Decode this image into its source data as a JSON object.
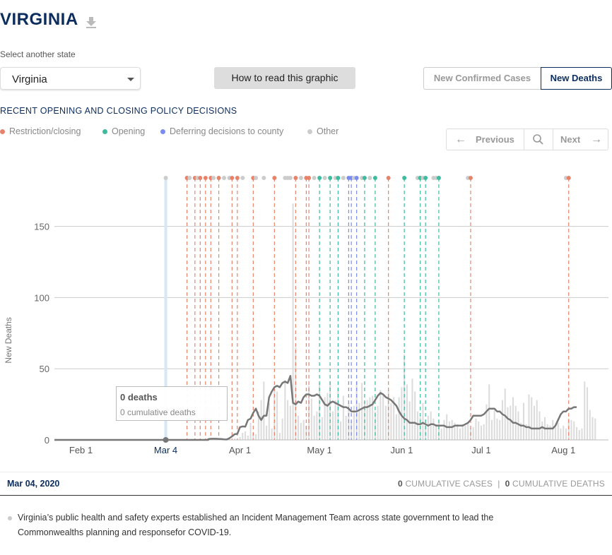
{
  "header": {
    "title": "VIRGINIA",
    "download_icon": "download-icon"
  },
  "state_select": {
    "label": "Select another state",
    "value": "Virginia"
  },
  "howto_button": "How to read this graphic",
  "toggle": {
    "cases": "New Confirmed Cases",
    "deaths": "New Deaths",
    "active": "deaths"
  },
  "policy": {
    "title": "RECENT OPENING AND CLOSING POLICY DECISIONS",
    "legend": [
      {
        "label": "Restriction/closing",
        "color": "#e8836b"
      },
      {
        "label": "Opening",
        "color": "#3dbb9c"
      },
      {
        "label": "Deferring decisions to county",
        "color": "#7b8cf0"
      },
      {
        "label": "Other",
        "color": "#cccccc"
      }
    ]
  },
  "pager": {
    "previous": "Previous",
    "next": "Next"
  },
  "tooltip": {
    "deaths": "0 deaths",
    "cumulative": "0 cumulative deaths"
  },
  "footer": {
    "date": "Mar 04, 2020",
    "cases_value": "0",
    "cases_label": "CUMULATIVE CASES",
    "separator": "|",
    "deaths_value": "0",
    "deaths_label": "CUMULATIVE DEATHS",
    "note": "Virginia’s public health and safety experts established an Incident Management Team across state government to lead the Commonwealths planning and responsefor COVID-19."
  },
  "chart_data": {
    "type": "bar",
    "ylabel": "New Deaths",
    "ylim": [
      0,
      190
    ],
    "y_ticks": [
      0,
      50,
      100,
      150
    ],
    "x_range": [
      "2020-01-22",
      "2020-08-18"
    ],
    "x_ticks": [
      {
        "date": "2020-02-01",
        "label": "Feb 1"
      },
      {
        "date": "2020-03-01",
        "label": "M"
      },
      {
        "date": "2020-04-01",
        "label": "Apr 1"
      },
      {
        "date": "2020-05-01",
        "label": "May 1"
      },
      {
        "date": "2020-06-01",
        "label": "Jun 1"
      },
      {
        "date": "2020-07-01",
        "label": "Jul 1"
      },
      {
        "date": "2020-08-01",
        "label": "Aug 1"
      }
    ],
    "selected": {
      "date": "2020-03-04",
      "label": "Mar 4"
    },
    "bars_start": "2020-03-14",
    "bars": [
      0,
      1,
      0,
      0,
      0,
      0,
      1,
      0,
      0,
      1,
      1,
      0,
      0,
      1,
      2,
      0,
      1,
      0,
      2,
      5,
      6,
      3,
      12,
      5,
      4,
      20,
      28,
      41,
      10,
      26,
      8,
      36,
      34,
      5,
      15,
      42,
      28,
      24,
      166,
      65,
      17,
      12,
      14,
      10,
      38,
      29,
      17,
      20,
      40,
      16,
      30,
      33,
      41,
      20,
      28,
      36,
      13,
      31,
      17,
      26,
      13,
      24,
      41,
      26,
      40,
      27,
      28,
      30,
      31,
      20,
      24,
      35,
      31,
      24,
      35,
      26,
      30,
      18,
      30,
      37,
      60,
      39,
      27,
      43,
      34,
      20,
      16,
      26,
      14,
      17,
      20,
      15,
      11,
      13,
      8,
      14,
      18,
      13,
      14,
      12,
      11,
      8,
      11,
      10,
      12,
      8,
      9,
      15,
      13,
      10,
      11,
      25,
      39,
      14,
      21,
      15,
      14,
      28,
      36,
      23,
      24,
      30,
      24,
      20,
      12,
      26,
      11,
      32,
      30,
      24,
      28,
      20,
      13,
      16,
      11,
      10,
      14,
      9,
      12,
      8,
      10,
      8,
      15,
      14,
      13,
      9,
      7,
      8,
      41,
      37,
      21,
      16,
      15
    ],
    "avg_start": "2020-03-20",
    "avg": [
      0.5,
      0.8,
      0.8,
      0.8,
      0.7,
      0.6,
      0.4,
      0.3,
      1.2,
      2.5,
      4,
      4.2,
      9,
      9.5,
      9.3,
      14,
      15,
      19,
      22,
      17,
      14,
      17,
      17,
      30,
      34,
      37,
      38,
      37,
      40,
      41,
      40,
      45,
      26,
      25,
      27,
      26,
      30,
      32,
      32,
      31,
      31,
      32,
      31,
      28,
      25,
      24,
      26,
      27,
      26,
      25,
      24,
      23,
      23,
      22,
      20,
      20,
      20,
      21,
      22,
      23,
      23,
      24,
      25,
      28,
      31,
      33,
      32,
      30,
      29,
      28,
      26,
      24,
      20,
      17,
      15,
      14,
      12,
      12,
      12,
      11,
      11,
      12,
      11,
      10,
      11,
      11,
      10,
      10,
      10,
      10,
      9,
      9,
      9,
      10,
      10,
      10,
      10,
      11,
      12,
      14,
      17,
      17,
      17,
      17,
      18,
      20,
      22,
      22,
      22,
      20,
      20,
      18,
      17,
      15,
      14,
      12,
      12,
      11,
      10,
      10,
      9,
      9,
      8,
      8,
      8,
      8,
      9,
      8,
      8,
      8,
      8,
      10,
      14,
      18,
      20,
      20,
      22,
      22,
      23,
      23
    ]
  },
  "policy_events": [
    {
      "date": "2020-03-12",
      "type": "restriction"
    },
    {
      "date": "2020-03-13",
      "type": "other"
    },
    {
      "date": "2020-03-15",
      "type": "restriction"
    },
    {
      "date": "2020-03-16",
      "type": "other"
    },
    {
      "date": "2020-03-17",
      "type": "restriction"
    },
    {
      "date": "2020-03-19",
      "type": "restriction"
    },
    {
      "date": "2020-03-21",
      "type": "restriction"
    },
    {
      "date": "2020-03-22",
      "type": "other"
    },
    {
      "date": "2020-03-24",
      "type": "restriction"
    },
    {
      "date": "2020-03-26",
      "type": "other"
    },
    {
      "date": "2020-03-28",
      "type": "other"
    },
    {
      "date": "2020-03-29",
      "type": "restriction"
    },
    {
      "date": "2020-03-31",
      "type": "restriction"
    },
    {
      "date": "2020-04-02",
      "type": "other"
    },
    {
      "date": "2020-04-06",
      "type": "restriction"
    },
    {
      "date": "2020-04-07",
      "type": "other"
    },
    {
      "date": "2020-04-10",
      "type": "other"
    },
    {
      "date": "2020-04-14",
      "type": "restriction"
    },
    {
      "date": "2020-04-18",
      "type": "other"
    },
    {
      "date": "2020-04-19",
      "type": "other"
    },
    {
      "date": "2020-04-20",
      "type": "other"
    },
    {
      "date": "2020-04-22",
      "type": "restriction"
    },
    {
      "date": "2020-04-24",
      "type": "other"
    },
    {
      "date": "2020-04-26",
      "type": "restriction"
    },
    {
      "date": "2020-04-27",
      "type": "restriction"
    },
    {
      "date": "2020-04-29",
      "type": "other"
    },
    {
      "date": "2020-05-01",
      "type": "opening"
    },
    {
      "date": "2020-05-03",
      "type": "other"
    },
    {
      "date": "2020-05-05",
      "type": "opening"
    },
    {
      "date": "2020-05-07",
      "type": "other"
    },
    {
      "date": "2020-05-08",
      "type": "opening"
    },
    {
      "date": "2020-05-10",
      "type": "other"
    },
    {
      "date": "2020-05-12",
      "type": "county"
    },
    {
      "date": "2020-05-13",
      "type": "county"
    },
    {
      "date": "2020-05-14",
      "type": "other"
    },
    {
      "date": "2020-05-15",
      "type": "county"
    },
    {
      "date": "2020-05-17",
      "type": "other"
    },
    {
      "date": "2020-05-18",
      "type": "opening"
    },
    {
      "date": "2020-05-20",
      "type": "other"
    },
    {
      "date": "2020-05-22",
      "type": "opening"
    },
    {
      "date": "2020-05-27",
      "type": "restriction"
    },
    {
      "date": "2020-06-02",
      "type": "opening"
    },
    {
      "date": "2020-06-07",
      "type": "other"
    },
    {
      "date": "2020-06-08",
      "type": "opening"
    },
    {
      "date": "2020-06-09",
      "type": "other"
    },
    {
      "date": "2020-06-10",
      "type": "opening"
    },
    {
      "date": "2020-06-13",
      "type": "other"
    },
    {
      "date": "2020-06-14",
      "type": "other"
    },
    {
      "date": "2020-06-15",
      "type": "opening"
    },
    {
      "date": "2020-06-26",
      "type": "other"
    },
    {
      "date": "2020-06-27",
      "type": "restriction"
    },
    {
      "date": "2020-08-02",
      "type": "other"
    },
    {
      "date": "2020-08-03",
      "type": "restriction"
    }
  ],
  "event_colors": {
    "restriction": "#e8836b",
    "opening": "#3dbb9c",
    "county": "#7b8cf0",
    "other": "#cccccc"
  }
}
